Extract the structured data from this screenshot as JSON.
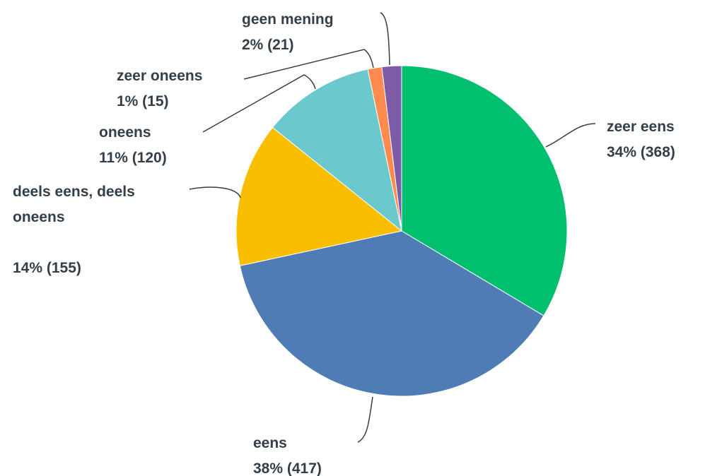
{
  "chart_data": {
    "type": "pie",
    "categories": [
      "zeer eens",
      "eens",
      "deels eens, deels oneens",
      "oneens",
      "zeer oneens",
      "geen mening"
    ],
    "values": [
      368,
      417,
      155,
      120,
      15,
      21
    ],
    "value_labels": [
      "34% (368)",
      "38% (417)",
      "14% (155)",
      "11% (120)",
      "1% (15)",
      "2% (21)"
    ],
    "colors": [
      "#00bf6f",
      "#507cb6",
      "#f9be00",
      "#6bc8cd",
      "#ff8b4f",
      "#7d5ba6"
    ]
  }
}
